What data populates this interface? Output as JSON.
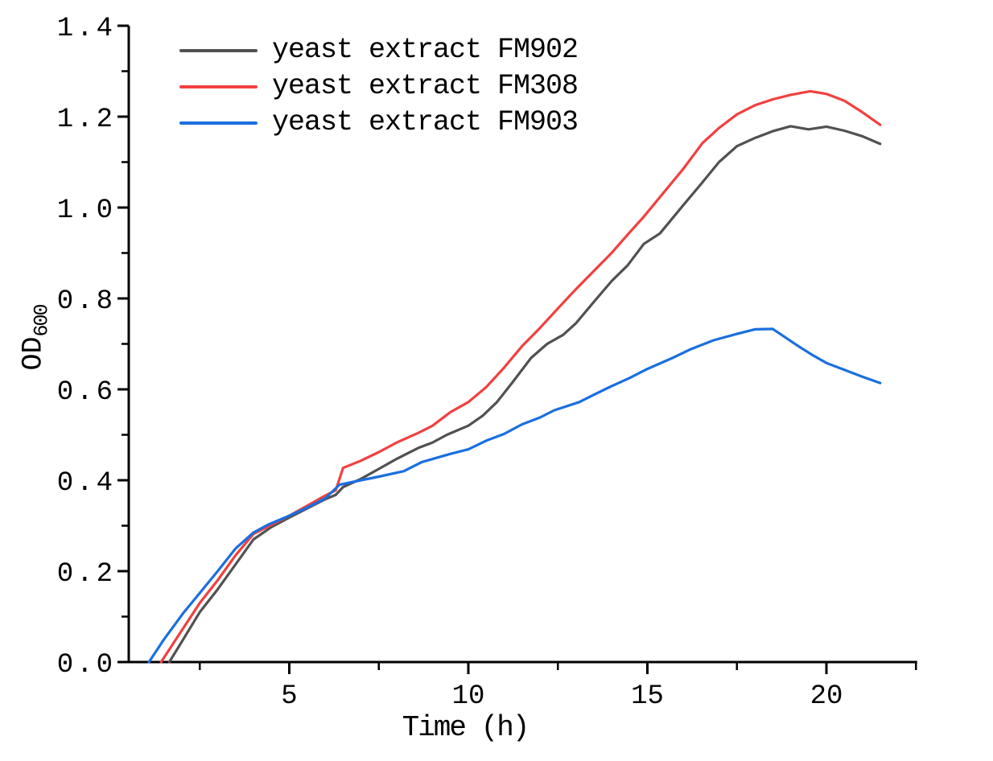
{
  "chart_data": {
    "type": "line",
    "title": "",
    "xlabel": "Time (h)",
    "ylabel": "OD",
    "ylabel_subscript": "600",
    "xlim": [
      0.5,
      22.5
    ],
    "ylim": [
      0.0,
      1.4
    ],
    "grid": false,
    "legend_position": "upper-left-inside",
    "x_major_ticks": [
      5,
      10,
      15,
      20
    ],
    "x_tick_labels": [
      "5",
      "10",
      "15",
      "20"
    ],
    "x_minor_ticks": [
      2.5,
      7.5,
      12.5,
      17.5,
      22.5
    ],
    "y_major_ticks": [
      0.0,
      0.2,
      0.4,
      0.6,
      0.8,
      1.0,
      1.2,
      1.4
    ],
    "y_tick_labels": [
      "0.0",
      "0.2",
      "0.4",
      "0.6",
      "0.8",
      "1.0",
      "1.2",
      "1.4"
    ],
    "y_minor_ticks": [
      0.1,
      0.3,
      0.5,
      0.7,
      0.9,
      1.1,
      1.3
    ],
    "axis_color": "#000000",
    "series": [
      {
        "name": "yeast extract FM902",
        "color": "#515151",
        "x": [
          1.65,
          2.0,
          2.5,
          3.0,
          3.5,
          4.0,
          4.5,
          5.0,
          5.5,
          6.0,
          6.3,
          6.5,
          7.0,
          7.5,
          8.0,
          8.6,
          9.0,
          9.4,
          10.0,
          10.4,
          10.8,
          11.2,
          11.75,
          12.2,
          12.65,
          13.0,
          13.5,
          14.0,
          14.45,
          14.9,
          15.35,
          16.0,
          16.5,
          17.0,
          17.5,
          18.0,
          18.5,
          19.0,
          19.5,
          20.0,
          20.5,
          21.0,
          21.5
        ],
        "y": [
          0.0,
          0.045,
          0.11,
          0.16,
          0.215,
          0.27,
          0.297,
          0.318,
          0.338,
          0.358,
          0.368,
          0.385,
          0.403,
          0.425,
          0.447,
          0.471,
          0.483,
          0.5,
          0.52,
          0.542,
          0.572,
          0.612,
          0.669,
          0.7,
          0.72,
          0.745,
          0.792,
          0.838,
          0.873,
          0.92,
          0.943,
          1.005,
          1.052,
          1.1,
          1.135,
          1.153,
          1.168,
          1.179,
          1.172,
          1.178,
          1.169,
          1.157,
          1.14
        ]
      },
      {
        "name": "yeast extract FM308",
        "color": "#F14040",
        "x": [
          1.42,
          2.0,
          2.5,
          3.0,
          3.5,
          4.0,
          4.5,
          5.0,
          5.5,
          6.0,
          6.3,
          6.5,
          7.0,
          7.5,
          8.0,
          8.6,
          9.0,
          9.5,
          10.0,
          10.5,
          11.0,
          11.5,
          12.0,
          12.5,
          13.0,
          13.66,
          14.0,
          14.5,
          14.9,
          15.35,
          16.0,
          16.54,
          17.0,
          17.5,
          18.0,
          18.5,
          19.0,
          19.55,
          20.0,
          20.5,
          21.0,
          21.5
        ],
        "y": [
          0.0,
          0.07,
          0.13,
          0.18,
          0.235,
          0.282,
          0.302,
          0.322,
          0.344,
          0.366,
          0.378,
          0.427,
          0.443,
          0.462,
          0.483,
          0.504,
          0.52,
          0.55,
          0.572,
          0.605,
          0.648,
          0.695,
          0.735,
          0.778,
          0.82,
          0.873,
          0.9,
          0.945,
          0.98,
          1.023,
          1.085,
          1.142,
          1.175,
          1.205,
          1.225,
          1.238,
          1.248,
          1.256,
          1.25,
          1.235,
          1.21,
          1.182
        ]
      },
      {
        "name": "yeast extract FM903",
        "color": "#1A6FDF",
        "x": [
          1.08,
          1.5,
          2.04,
          2.5,
          3.0,
          3.5,
          4.0,
          4.4,
          5.0,
          5.5,
          6.0,
          6.4,
          7.0,
          7.5,
          8.2,
          8.7,
          9.5,
          10.0,
          10.5,
          11.0,
          11.5,
          12.0,
          12.4,
          13.1,
          13.5,
          14.0,
          14.5,
          15.0,
          15.7,
          16.2,
          16.85,
          17.5,
          18.0,
          18.5,
          19.2,
          19.6,
          20.0,
          20.5,
          21.0,
          21.5
        ],
        "y": [
          0.0,
          0.05,
          0.108,
          0.152,
          0.2,
          0.25,
          0.285,
          0.302,
          0.322,
          0.34,
          0.36,
          0.39,
          0.4,
          0.408,
          0.42,
          0.44,
          0.458,
          0.468,
          0.487,
          0.502,
          0.523,
          0.538,
          0.554,
          0.572,
          0.588,
          0.607,
          0.625,
          0.645,
          0.669,
          0.688,
          0.708,
          0.722,
          0.732,
          0.733,
          0.696,
          0.676,
          0.658,
          0.643,
          0.628,
          0.614
        ]
      }
    ]
  }
}
